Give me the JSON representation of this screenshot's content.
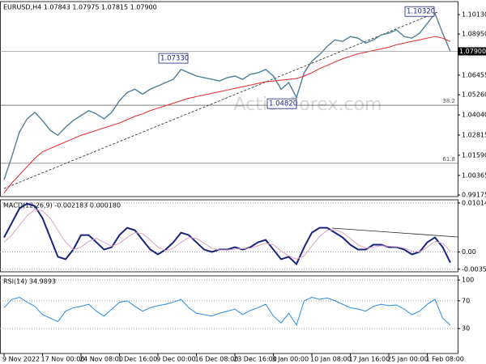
{
  "watermark": "ActionForex.com",
  "chart_data": [
    {
      "type": "line",
      "title": "EURUSD,H4 1.07843 1.07975 1.07815 1.07900",
      "ylim": [
        0.9908,
        1.1092
      ],
      "yticks": [
        {
          "value": 1.1013,
          "label": "1.10130"
        },
        {
          "value": 1.0895,
          "label": "1.08950"
        },
        1.06455,
        {
          "value": 1.0526,
          "label": "1.05260"
        },
        {
          "value": 1.0404,
          "label": "1.04040"
        },
        1.02815,
        {
          "value": 1.0159,
          "label": "1.01590"
        },
        1.00365,
        0.99175
      ],
      "price_label": {
        "value": 1.079,
        "label": "1.07900"
      },
      "levels": [
        {
          "value": 1.0463,
          "label": "38.2"
        },
        {
          "value": 1.011,
          "label": "61.8"
        }
      ],
      "annotations": [
        {
          "value": 1.1032,
          "label": "1.10320"
        },
        {
          "value": 1.0733,
          "label": "1.07330"
        },
        {
          "value": 1.0482,
          "label": "1.04820"
        }
      ],
      "series": [
        {
          "color": "#4f7f96",
          "values": [
            1.001,
            1.015,
            1.03,
            1.038,
            1.042,
            1.037,
            1.031,
            1.028,
            1.033,
            1.037,
            1.04,
            1.043,
            1.041,
            1.038,
            1.042,
            1.049,
            1.054,
            1.056,
            1.053,
            1.056,
            1.058,
            1.06,
            1.062,
            1.068,
            1.066,
            1.064,
            1.063,
            1.062,
            1.061,
            1.063,
            1.064,
            1.062,
            1.065,
            1.066,
            1.068,
            1.064,
            1.056,
            1.06,
            1.051,
            1.066,
            1.073,
            1.077,
            1.082,
            1.086,
            1.085,
            1.088,
            1.087,
            1.084,
            1.086,
            1.089,
            1.09,
            1.092,
            1.088,
            1.087,
            1.09,
            1.096,
            1.102,
            1.09,
            1.079
          ]
        },
        {
          "color": "#e02828",
          "values": [
            0.993,
            0.999,
            1.004,
            1.009,
            1.014,
            1.018,
            1.02,
            1.022,
            1.024,
            1.026,
            1.028,
            1.0295,
            1.031,
            1.0325,
            1.034,
            1.0355,
            1.0375,
            1.0395,
            1.041,
            1.043,
            1.0445,
            1.046,
            1.0475,
            1.049,
            1.0505,
            1.0515,
            1.0525,
            1.0535,
            1.0545,
            1.0555,
            1.0565,
            1.0575,
            1.0585,
            1.0595,
            1.0605,
            1.061,
            1.0615,
            1.062,
            1.0625,
            1.064,
            1.066,
            1.0685,
            1.0705,
            1.0725,
            1.0745,
            1.076,
            1.0775,
            1.0785,
            1.0795,
            1.0805,
            1.0815,
            1.083,
            1.084,
            1.085,
            1.086,
            1.087,
            1.088,
            1.087,
            1.085
          ]
        }
      ]
    },
    {
      "type": "line",
      "title": "MACD(12,26,9) -0.002183 0.000180",
      "ylim": [
        -0.0041,
        0.0108
      ],
      "yticks": [
        0.010145,
        {
          "value": 0,
          "label": "0.00"
        },
        -0.003563
      ],
      "series": [
        {
          "color": "#1a237e",
          "values": [
            0.003,
            0.006,
            0.009,
            0.01,
            0.0095,
            0.007,
            0.003,
            -0.001,
            -0.0015,
            0.0005,
            0.0035,
            0.0035,
            0.002,
            0.0005,
            0.001,
            0.0035,
            0.005,
            0.0045,
            0.0025,
            0.0005,
            -0.0005,
            0.0005,
            0.002,
            0.004,
            0.0035,
            0.002,
            0.0005,
            0.0,
            0.0005,
            0.0005,
            0.001,
            0.0005,
            0.001,
            0.002,
            0.0025,
            0.0005,
            -0.0015,
            -0.001,
            -0.0025,
            0.001,
            0.004,
            0.005,
            0.005,
            0.004,
            0.003,
            0.0015,
            0.0005,
            0.0005,
            0.0015,
            0.0015,
            0.001,
            0.001,
            0.0005,
            -0.0005,
            0.0,
            0.002,
            0.003,
            0.001,
            -0.0022
          ]
        },
        {
          "color": "#d9a3c6",
          "values": [
            0.002,
            0.0035,
            0.0055,
            0.0075,
            0.0088,
            0.0085,
            0.007,
            0.0045,
            0.002,
            0.0005,
            0.001,
            0.0022,
            0.0028,
            0.002,
            0.0012,
            0.0018,
            0.003,
            0.004,
            0.0038,
            0.0025,
            0.001,
            0.0003,
            0.0008,
            0.002,
            0.003,
            0.0028,
            0.0018,
            0.0008,
            0.0004,
            0.0004,
            0.0006,
            0.0007,
            0.0008,
            0.0013,
            0.0018,
            0.0015,
            0.0002,
            -0.0008,
            -0.0015,
            -0.0008,
            0.0012,
            0.0032,
            0.0045,
            0.0046,
            0.004,
            0.0028,
            0.0015,
            0.0008,
            0.001,
            0.0013,
            0.0012,
            0.0011,
            0.0008,
            0.0002,
            0.0,
            0.001,
            0.0022,
            0.0018,
            0.0002
          ]
        }
      ]
    },
    {
      "type": "line",
      "title": "RSI(14) 34.9893",
      "ylim": [
        -6,
        106
      ],
      "yticks": [
        100,
        70,
        30
      ],
      "categories": [
        "9 Nov 2022",
        null,
        null,
        null,
        null,
        "17 Nov 00:00",
        null,
        null,
        null,
        null,
        "24 Nov 08:00",
        null,
        null,
        null,
        null,
        "1 Dec 16:00",
        null,
        null,
        null,
        null,
        "9 Dec 00:00",
        null,
        null,
        null,
        null,
        "16 Dec 08:00",
        null,
        null,
        null,
        null,
        "23 Dec 16:00",
        null,
        null,
        null,
        null,
        "3 Jan 00:00",
        null,
        null,
        null,
        null,
        "10 Jan 08:00",
        null,
        null,
        null,
        null,
        "17 Jan 16:00",
        null,
        null,
        null,
        null,
        "25 Jan 00:00",
        null,
        null,
        null,
        null,
        "1 Feb 08:00",
        null,
        null,
        null
      ],
      "series": [
        {
          "color": "#2a8be0",
          "values": [
            60,
            72,
            75,
            68,
            62,
            50,
            45,
            40,
            55,
            60,
            62,
            65,
            55,
            48,
            58,
            68,
            70,
            62,
            55,
            60,
            63,
            65,
            68,
            72,
            60,
            52,
            50,
            48,
            52,
            55,
            58,
            50,
            56,
            60,
            65,
            48,
            38,
            52,
            35,
            70,
            75,
            72,
            74,
            70,
            65,
            60,
            58,
            55,
            62,
            65,
            63,
            64,
            58,
            50,
            55,
            65,
            72,
            45,
            35
          ]
        }
      ]
    }
  ]
}
